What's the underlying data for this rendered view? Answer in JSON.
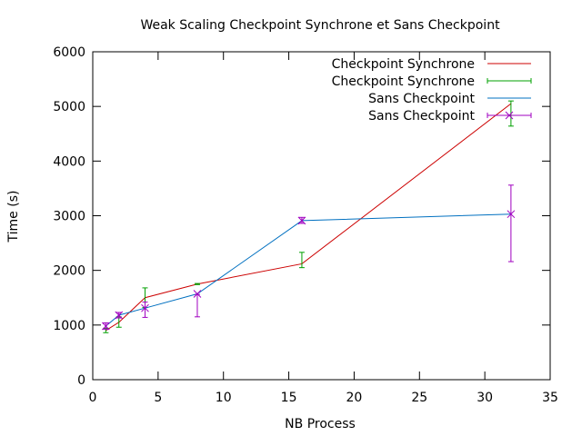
{
  "chart_data": {
    "type": "line",
    "title": "Weak Scaling Checkpoint Synchrone et Sans Checkpoint",
    "xlabel": "NB Process",
    "ylabel": "Time (s)",
    "xlim": [
      0,
      35
    ],
    "ylim": [
      0,
      6000
    ],
    "xticks": [
      0,
      5,
      10,
      15,
      20,
      25,
      30,
      35
    ],
    "yticks": [
      0,
      1000,
      2000,
      3000,
      4000,
      5000,
      6000
    ],
    "grid": false,
    "legend_position": "top-right",
    "series": [
      {
        "name": "Checkpoint Synchrone",
        "kind": "line",
        "color": "#cc0000",
        "x": [
          1,
          2,
          4,
          8,
          16,
          32
        ],
        "y": [
          900,
          1050,
          1500,
          1750,
          2120,
          5050
        ]
      },
      {
        "name": "Checkpoint Synchrone",
        "kind": "errorbars",
        "color": "#00a000",
        "x": [
          1,
          2,
          4,
          8,
          16,
          32
        ],
        "y": [
          900,
          1050,
          1500,
          1750,
          2120,
          5050
        ],
        "ylow": [
          860,
          960,
          1320,
          1740,
          2050,
          4640
        ],
        "yhigh": [
          940,
          1150,
          1680,
          1760,
          2330,
          5100
        ]
      },
      {
        "name": "Sans Checkpoint",
        "kind": "line",
        "color": "#0070c0",
        "x": [
          1,
          2,
          4,
          8,
          16,
          32
        ],
        "y": [
          980,
          1180,
          1310,
          1570,
          2910,
          3030
        ]
      },
      {
        "name": "Sans Checkpoint",
        "kind": "errorbars_points",
        "color": "#a000c0",
        "x": [
          1,
          2,
          4,
          8,
          16,
          32
        ],
        "y": [
          980,
          1180,
          1310,
          1570,
          2910,
          3030
        ],
        "ylow": [
          920,
          1130,
          1140,
          1150,
          2860,
          2160
        ],
        "yhigh": [
          1040,
          1230,
          1420,
          1560,
          2970,
          3560
        ]
      }
    ]
  }
}
